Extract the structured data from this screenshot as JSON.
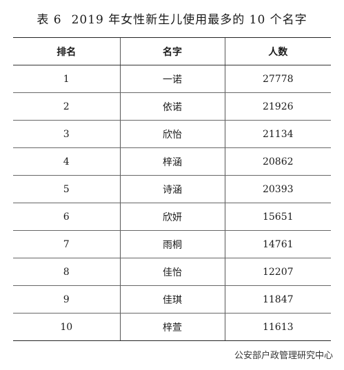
{
  "title": {
    "table_no": "表 6",
    "text": "2019 年女性新生儿使用最多的 10 个名字"
  },
  "table": {
    "headers": [
      "排名",
      "名字",
      "人数"
    ],
    "rows": [
      {
        "rank": "1",
        "name": "一诺",
        "count": "27778"
      },
      {
        "rank": "2",
        "name": "依诺",
        "count": "21926"
      },
      {
        "rank": "3",
        "name": "欣怡",
        "count": "21134"
      },
      {
        "rank": "4",
        "name": "梓涵",
        "count": "20862"
      },
      {
        "rank": "5",
        "name": "诗涵",
        "count": "20393"
      },
      {
        "rank": "6",
        "name": "欣妍",
        "count": "15651"
      },
      {
        "rank": "7",
        "name": "雨桐",
        "count": "14761"
      },
      {
        "rank": "8",
        "name": "佳怡",
        "count": "12207"
      },
      {
        "rank": "9",
        "name": "佳琪",
        "count": "11847"
      },
      {
        "rank": "10",
        "name": "梓萱",
        "count": "11613"
      }
    ]
  },
  "source": "公安部户政管理研究中心"
}
